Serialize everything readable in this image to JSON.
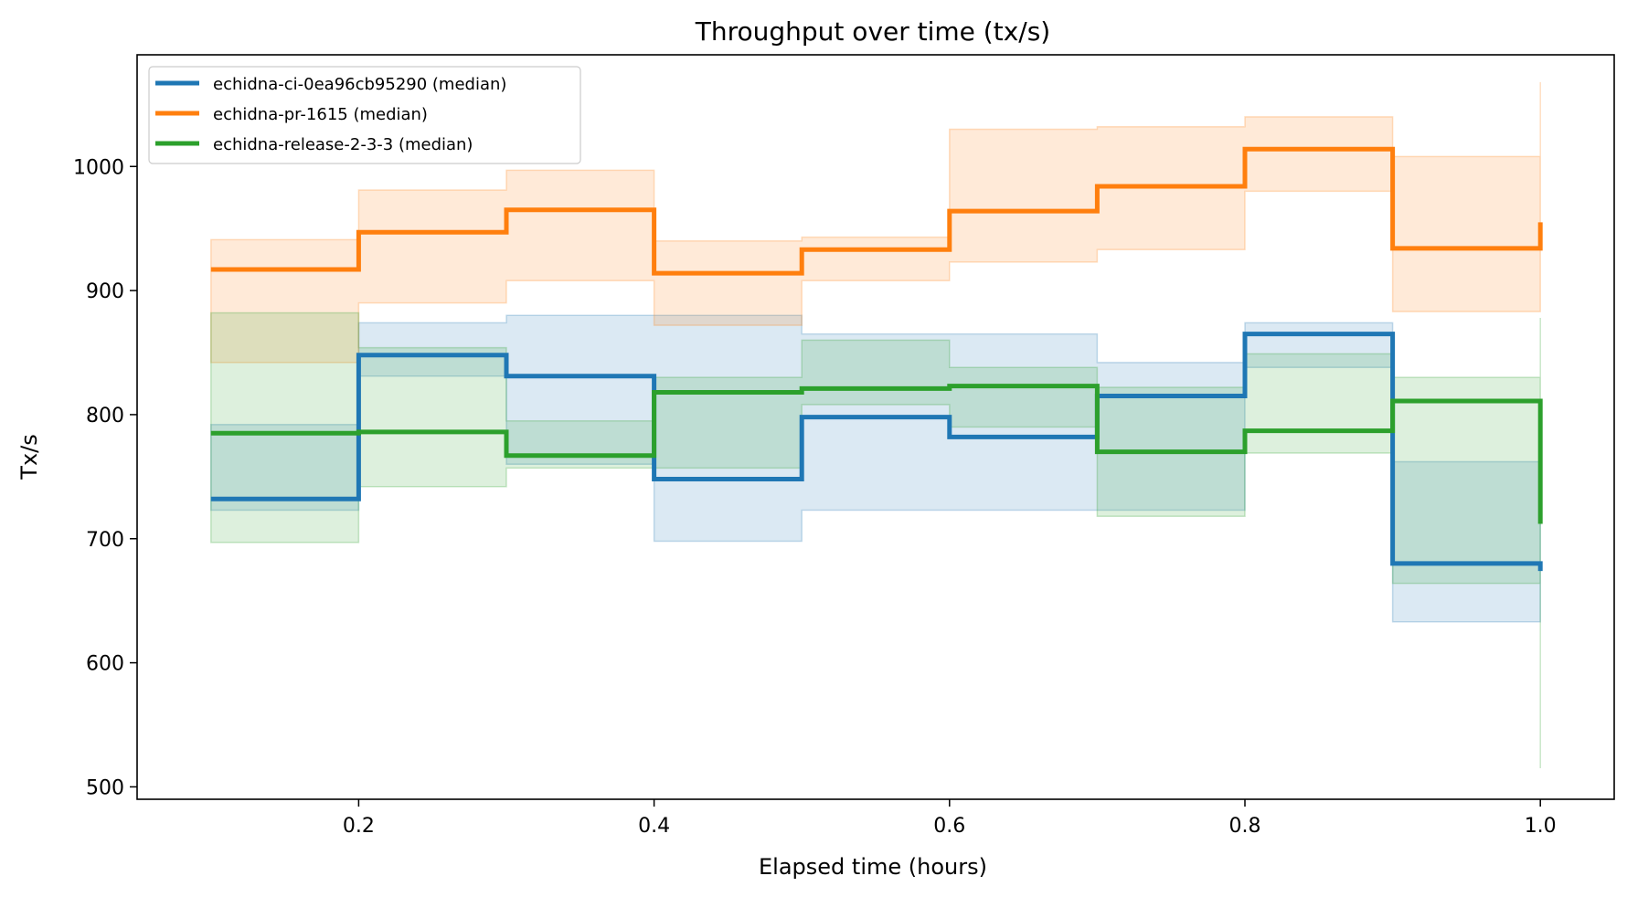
{
  "chart_data": {
    "type": "line",
    "step": "post",
    "title": "Throughput over time (tx/s)",
    "xlabel": "Elapsed time (hours)",
    "ylabel": "Tx/s",
    "xlim": [
      0.05,
      1.05
    ],
    "ylim": [
      490,
      1090
    ],
    "xticks": [
      0.2,
      0.4,
      0.6,
      0.8,
      1.0
    ],
    "xtick_labels": [
      "0.2",
      "0.4",
      "0.6",
      "0.8",
      "1.0"
    ],
    "yticks": [
      500,
      600,
      700,
      800,
      900,
      1000
    ],
    "ytick_labels": [
      "500",
      "600",
      "700",
      "800",
      "900",
      "1000"
    ],
    "grid": false,
    "legend_position": "top-left",
    "x": [
      0.1,
      0.2,
      0.3,
      0.4,
      0.5,
      0.6,
      0.7,
      0.8,
      0.9,
      1.0
    ],
    "series": [
      {
        "name": "echidna-ci-0ea96cb95290 (median)",
        "color": "#1f77b4",
        "values": [
          732,
          848,
          831,
          748,
          798,
          782,
          815,
          865,
          680,
          674
        ],
        "band_low": [
          723,
          831,
          760,
          698,
          723,
          723,
          723,
          838,
          633,
          633
        ],
        "band_high": [
          792,
          874,
          880,
          880,
          865,
          865,
          842,
          874,
          762,
          762
        ]
      },
      {
        "name": "echidna-pr-1615 (median)",
        "color": "#ff7f0e",
        "values": [
          917,
          947,
          965,
          914,
          933,
          964,
          984,
          1014,
          934,
          955
        ],
        "band_low": [
          842,
          890,
          908,
          872,
          908,
          923,
          933,
          980,
          883,
          883
        ],
        "band_high": [
          941,
          981,
          997,
          940,
          943,
          1030,
          1032,
          1040,
          1008,
          1068
        ]
      },
      {
        "name": "echidna-release-2-3-3 (median)",
        "color": "#2ca02c",
        "values": [
          785,
          786,
          767,
          818,
          821,
          823,
          770,
          787,
          811,
          712
        ],
        "band_low": [
          697,
          742,
          757,
          757,
          808,
          790,
          718,
          769,
          664,
          515
        ],
        "band_high": [
          882,
          854,
          795,
          830,
          860,
          838,
          822,
          849,
          830,
          878
        ]
      }
    ]
  }
}
